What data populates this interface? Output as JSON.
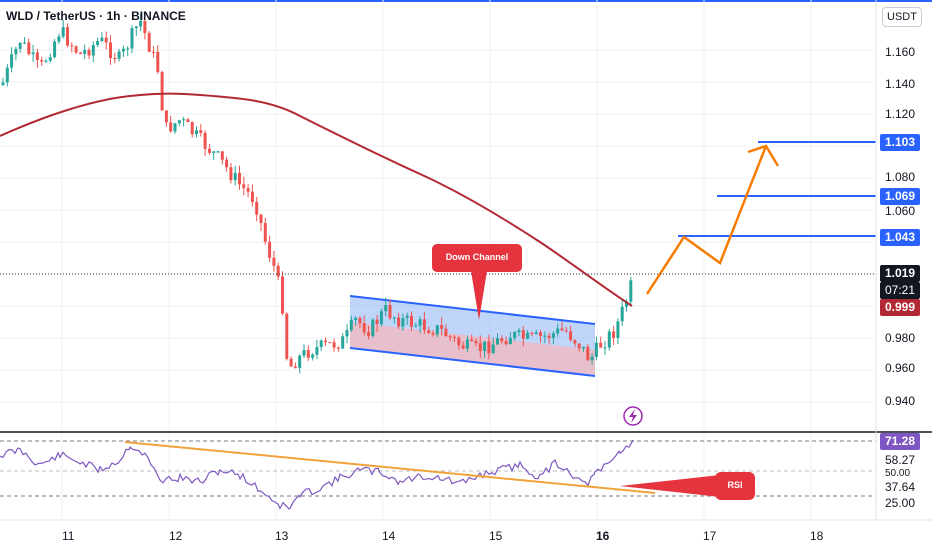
{
  "header": {
    "title": "WLD / TetherUS · 1h · BINANCE",
    "currency": "USDT"
  },
  "price_axis": {
    "ticks": [
      "1.160",
      "1.140",
      "1.120",
      "1.080",
      "1.060",
      "0.980",
      "0.960",
      "0.940"
    ]
  },
  "price_tags": {
    "current_price": "1.019",
    "countdown": "07:21",
    "ma_value": "0.999",
    "target_1": "1.043",
    "target_2": "1.069",
    "target_3": "1.103"
  },
  "rsi_axis": {
    "values": [
      "71.28",
      "58.27",
      "50.00",
      "37.64",
      "25.00"
    ]
  },
  "time_axis": {
    "labels": [
      "11",
      "12",
      "13",
      "14",
      "15",
      "16",
      "17",
      "18"
    ],
    "bold_label": "16"
  },
  "annotations": {
    "down_channel": "Down Channel",
    "rsi": "RSI"
  },
  "colors": {
    "up": "#26a69a",
    "down": "#ef5350",
    "ma": "#b22833",
    "projection": "#f57c00",
    "target_line": "#2962ff",
    "rsi_line": "#7e57c2",
    "trend": "#f0a23b",
    "channel_fill_top": "#6c9bf3",
    "channel_fill_bottom": "#f2a7ae",
    "callout": "#e5343d"
  },
  "chart_data": {
    "type": "candlestick",
    "symbol": "WLD / TetherUS",
    "interval": "1h",
    "exchange": "BINANCE",
    "x_labels": [
      "11",
      "12",
      "13",
      "14",
      "15",
      "16",
      "17",
      "18"
    ],
    "ylim": [
      0.925,
      1.175
    ],
    "price_levels": [
      1.043,
      1.069,
      1.103
    ],
    "current_price": 1.019,
    "moving_average_last": 0.999,
    "projection_path": [
      [
        16.4,
        1.0
      ],
      [
        16.8,
        1.043
      ],
      [
        17.1,
        1.02
      ],
      [
        17.5,
        1.103
      ],
      [
        17.6,
        1.088
      ]
    ],
    "rsi_last": 71.28,
    "rsi_levels": [
      58.27,
      37.64,
      25.0
    ]
  }
}
